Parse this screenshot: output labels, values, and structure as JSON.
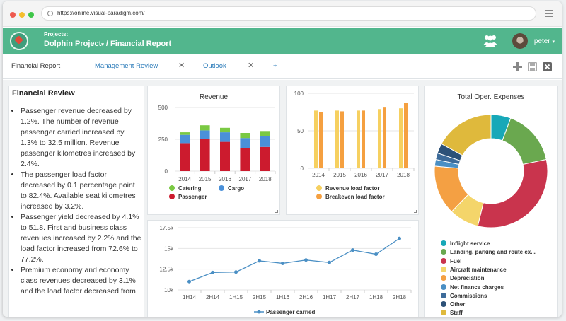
{
  "browser": {
    "url": "https://online.visual-paradigm.com/"
  },
  "header": {
    "projects_label": "Projects:",
    "project_name": "Dolphin Project",
    "page_name": "/ Financial Report",
    "user_name": "peter"
  },
  "tabs": [
    {
      "label": "Financial Report"
    },
    {
      "label": "Management Review"
    },
    {
      "label": "Outlook"
    },
    {
      "label": "+"
    }
  ],
  "review": {
    "title": "Financial Review",
    "items": [
      "Passenger revenue decreased by 1.2%. The number of revenue passenger carried increased by 1.3% to 32.5 million. Revenue passenger kilometres increased by 2.4%.",
      "The passenger load factor decreased by 0.1 percentage point to 82.4%. Available seat kilometres increased by 3.2%.",
      "Passenger yield decreased by 4.1% to 51.8. First and business class revenues increased by 2.2% and the load factor increased from 72.6% to 77.2%.",
      "Premium economy and economy class revenues decreased by 3.1% and the load factor decreased from"
    ]
  },
  "chart_data": [
    {
      "type": "bar",
      "title": "Revenue",
      "categories": [
        "2014",
        "2015",
        "2016",
        "2017",
        "2018"
      ],
      "stacked": true,
      "yticks": [
        "0",
        "250",
        "500"
      ],
      "ylim": [
        0,
        500
      ],
      "series": [
        {
          "name": "Passenger",
          "color": "#cc1b2e",
          "values": [
            220,
            250,
            230,
            180,
            190
          ]
        },
        {
          "name": "Cargo",
          "color": "#4a90d9",
          "values": [
            65,
            70,
            75,
            80,
            85
          ]
        },
        {
          "name": "Catering",
          "color": "#7ac943",
          "values": [
            20,
            40,
            35,
            40,
            40
          ]
        }
      ],
      "legend_position": "bottom"
    },
    {
      "type": "bar",
      "title": "",
      "categories": [
        "2014",
        "2015",
        "2016",
        "2017",
        "2018"
      ],
      "yticks": [
        "0",
        "50",
        "100"
      ],
      "ylim": [
        0,
        100
      ],
      "series": [
        {
          "name": "Revenue load factor",
          "color": "#f6d060",
          "values": [
            77,
            77,
            77,
            79,
            80
          ]
        },
        {
          "name": "Breakeven load factor",
          "color": "#f5a040",
          "values": [
            75,
            76,
            77,
            81,
            87
          ]
        }
      ],
      "legend_position": "bottom"
    },
    {
      "type": "line",
      "title": "",
      "x": [
        "1H14",
        "2H14",
        "1H15",
        "2H15",
        "1H16",
        "2H16",
        "1H17",
        "2H17",
        "1H18",
        "2H18"
      ],
      "yticks": [
        "10k",
        "12.5k",
        "15k",
        "17.5k"
      ],
      "ylim": [
        10000,
        17500
      ],
      "series": [
        {
          "name": "Passenger carried",
          "color": "#4a8fc4",
          "values": [
            11000,
            12100,
            12150,
            13500,
            13200,
            13600,
            13300,
            14800,
            14300,
            16200
          ]
        }
      ],
      "legend_position": "bottom"
    },
    {
      "type": "pie",
      "title": "Total Oper. Expenses",
      "donut": true,
      "series": [
        {
          "name": "Inflight service",
          "color": "#17a8b8",
          "value": 6
        },
        {
          "name": "Landing, parking and route ex...",
          "color": "#6aa84f",
          "value": 17
        },
        {
          "name": "Fuel",
          "color": "#c9344d",
          "value": 34
        },
        {
          "name": "Aircraft maintenance",
          "color": "#f4d56a",
          "value": 9
        },
        {
          "name": "Depreciation",
          "color": "#f4a043",
          "value": 15
        },
        {
          "name": "Net finance charges",
          "color": "#4a8fc4",
          "value": 2
        },
        {
          "name": "Commissions",
          "color": "#3d6b9a",
          "value": 2
        },
        {
          "name": "Other",
          "color": "#2c5178",
          "value": 3
        },
        {
          "name": "Staff",
          "color": "#dfb93c",
          "value": 18
        }
      ],
      "legend_position": "bottom"
    }
  ]
}
